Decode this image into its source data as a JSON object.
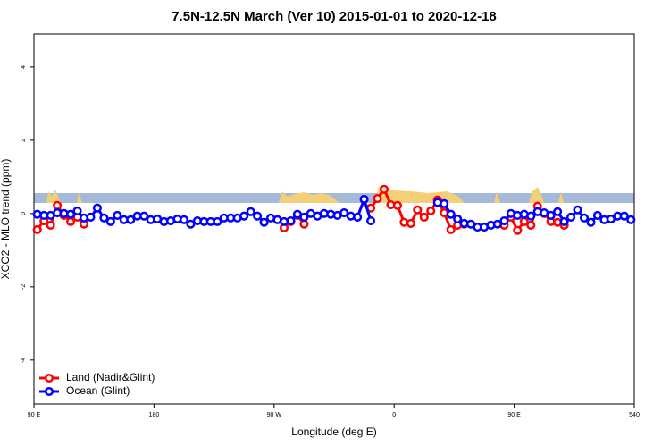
{
  "chart_data": {
    "type": "line",
    "title": "7.5N-12.5N March (Ver 10)   2015-01-01 to 2020-12-18",
    "x_label": "Longitude (deg E)",
    "y_label": "XCO2 - MLO trend (ppm)",
    "xlim": [
      90,
      540
    ],
    "xticks": [
      {
        "value": 90,
        "label": "90 E"
      },
      180,
      {
        "value": 270,
        "label": "90 W"
      },
      {
        "value": 360,
        "label": "0"
      },
      {
        "value": 450,
        "label": "90 E"
      },
      540
    ],
    "ylim": [
      -5.2,
      4.9
    ],
    "yticks": [
      -4,
      -2,
      0,
      2,
      4
    ],
    "legend": "bottom-left",
    "x": [
      92.5,
      97.5,
      102.5,
      107.5,
      112.5,
      117.5,
      122.5,
      127.5,
      132.5,
      137.5,
      142.5,
      147.5,
      152.5,
      157.5,
      162.5,
      167.5,
      172.5,
      177.5,
      182.5,
      187.5,
      192.5,
      197.5,
      202.5,
      207.5,
      212.5,
      217.5,
      222.5,
      227.5,
      232.5,
      237.5,
      242.5,
      247.5,
      252.5,
      257.5,
      262.5,
      267.5,
      272.5,
      277.5,
      282.5,
      287.5,
      292.5,
      297.5,
      302.5,
      307.5,
      312.5,
      317.5,
      322.5,
      327.5,
      332.5,
      337.5,
      342.5,
      347.5,
      352.5,
      357.5,
      362.5,
      367.5,
      372.5,
      377.5,
      382.5,
      387.5,
      392.5,
      397.5,
      402.5,
      407.5,
      412.5,
      417.5,
      422.5,
      427.5,
      432.5,
      437.5,
      442.5,
      447.5,
      452.5,
      457.5,
      462.5,
      467.5,
      472.5,
      477.5,
      482.5,
      487.5,
      492.5,
      497.5,
      502.5,
      507.5,
      512.5,
      517.5,
      522.5,
      527.5,
      532.5,
      537.5
    ],
    "series": [
      {
        "name": "Land (Nadir&Glint)",
        "color": "#ff0000",
        "values": [
          -0.44,
          -0.2,
          -0.32,
          0.22,
          -0.05,
          -0.22,
          -0.1,
          -0.29,
          null,
          null,
          null,
          null,
          null,
          null,
          null,
          null,
          null,
          null,
          null,
          null,
          null,
          null,
          null,
          null,
          null,
          null,
          null,
          null,
          null,
          null,
          null,
          null,
          null,
          null,
          null,
          null,
          null,
          -0.39,
          -0.22,
          -0.05,
          -0.29,
          null,
          null,
          null,
          null,
          null,
          null,
          null,
          null,
          null,
          0.15,
          0.41,
          0.66,
          0.24,
          0.22,
          -0.24,
          -0.27,
          0.1,
          -0.1,
          0.07,
          0.37,
          0.02,
          -0.44,
          -0.32,
          -0.29,
          null,
          null,
          null,
          null,
          null,
          -0.32,
          -0.1,
          -0.46,
          -0.22,
          -0.32,
          0.2,
          0,
          -0.22,
          -0.24,
          -0.32,
          null,
          null,
          null,
          null,
          null,
          null,
          null,
          null,
          null,
          null
        ]
      },
      {
        "name": "Ocean (Glint)",
        "color": "#0000ff",
        "values": [
          -0.02,
          -0.05,
          -0.05,
          0.02,
          0,
          -0.02,
          0.07,
          -0.12,
          -0.1,
          0.15,
          -0.12,
          -0.22,
          -0.05,
          -0.17,
          -0.17,
          -0.07,
          -0.07,
          -0.17,
          -0.15,
          -0.22,
          -0.2,
          -0.15,
          -0.17,
          -0.29,
          -0.2,
          -0.22,
          -0.22,
          -0.22,
          -0.12,
          -0.12,
          -0.12,
          -0.07,
          0.05,
          -0.07,
          -0.24,
          -0.12,
          -0.17,
          -0.22,
          -0.2,
          -0.02,
          -0.1,
          0,
          -0.07,
          0,
          -0.02,
          -0.05,
          0.02,
          -0.07,
          -0.1,
          0.39,
          -0.2,
          null,
          null,
          null,
          null,
          null,
          null,
          null,
          null,
          null,
          0.3,
          0.27,
          -0.02,
          -0.15,
          -0.27,
          -0.29,
          -0.37,
          -0.37,
          -0.32,
          -0.29,
          -0.2,
          0,
          -0.05,
          -0.02,
          -0.07,
          0.05,
          0.02,
          -0.05,
          0.05,
          -0.22,
          -0.1,
          0.1,
          -0.12,
          -0.24,
          -0.05,
          -0.17,
          -0.15,
          -0.07,
          -0.07,
          -0.17
        ]
      }
    ]
  }
}
